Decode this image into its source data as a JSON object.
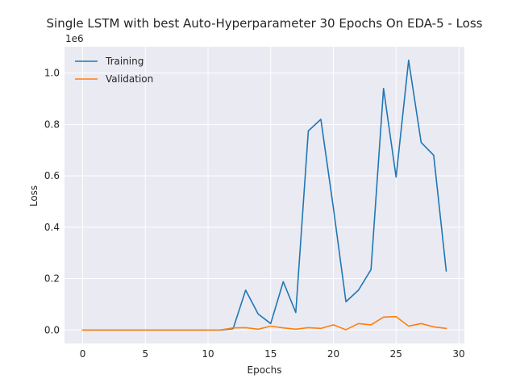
{
  "chart_data": {
    "type": "line",
    "title": "Single LSTM with best Auto-Hyperparameter 30 Epochs On EDA-5 - Loss",
    "xlabel": "Epochs",
    "ylabel": "Loss",
    "y_offset_text": "1e6",
    "xlim": [
      -1.45,
      30.45
    ],
    "ylim": [
      -52500,
      1102500
    ],
    "xticks": [
      0,
      5,
      10,
      15,
      20,
      25,
      30
    ],
    "yticks": [
      0.0,
      0.2,
      0.4,
      0.6,
      0.8,
      1.0
    ],
    "ytick_labels": [
      "0.0",
      "0.2",
      "0.4",
      "0.6",
      "0.8",
      "1.0"
    ],
    "grid": true,
    "legend_position": "upper left",
    "x": [
      0,
      1,
      2,
      3,
      4,
      5,
      6,
      7,
      8,
      9,
      10,
      11,
      12,
      13,
      14,
      15,
      16,
      17,
      18,
      19,
      20,
      21,
      22,
      23,
      24,
      25,
      26,
      27,
      28,
      29
    ],
    "series": [
      {
        "name": "Training",
        "color": "#1f77b4",
        "values": [
          0,
          0,
          0,
          0,
          0,
          0,
          0,
          0,
          0,
          0,
          0,
          0,
          5000,
          155000,
          62000,
          25000,
          188000,
          68000,
          775000,
          820000,
          475000,
          110000,
          155000,
          235000,
          940000,
          595000,
          1050000,
          730000,
          680000,
          230000
        ]
      },
      {
        "name": "Validation",
        "color": "#ff7f0e",
        "values": [
          0,
          0,
          0,
          0,
          0,
          0,
          0,
          0,
          0,
          0,
          0,
          0,
          8000,
          9000,
          3000,
          15000,
          8000,
          3000,
          9000,
          6000,
          20000,
          1000,
          25000,
          20000,
          50000,
          52000,
          15000,
          25000,
          12000,
          6000
        ]
      }
    ]
  }
}
